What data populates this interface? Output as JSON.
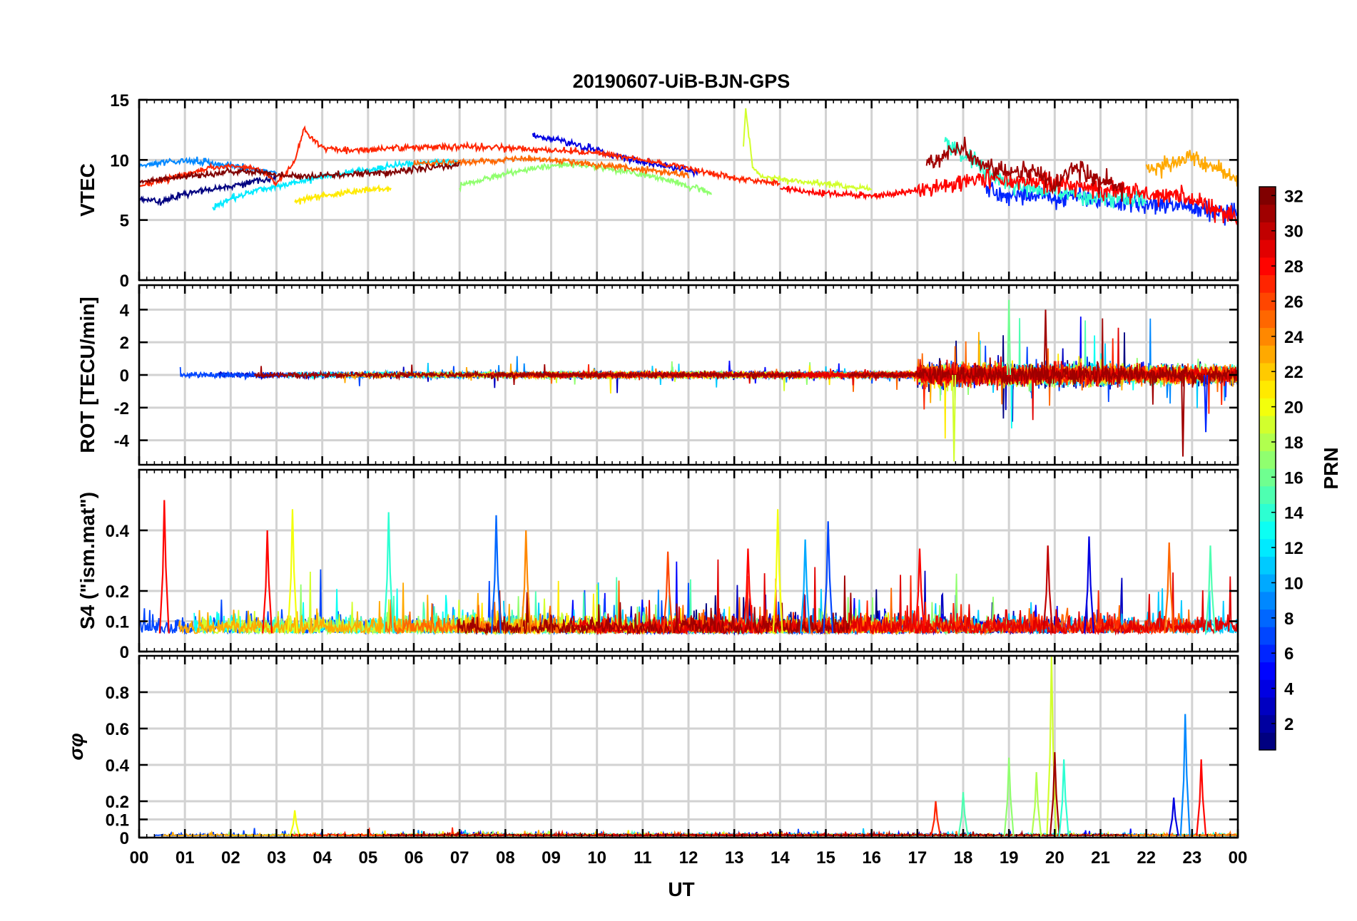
{
  "chart_data": {
    "type": "line",
    "title": "20190607-UiB-BJN-GPS",
    "xlabel": "UT",
    "x_tick_labels": [
      "00",
      "01",
      "02",
      "03",
      "04",
      "05",
      "06",
      "07",
      "08",
      "09",
      "10",
      "11",
      "12",
      "13",
      "14",
      "15",
      "16",
      "17",
      "18",
      "19",
      "20",
      "21",
      "22",
      "23",
      "00"
    ],
    "xlim": [
      0,
      24
    ],
    "grid": true,
    "colorbar": {
      "label": "PRN",
      "range": [
        1,
        32
      ],
      "tick_labels": [
        "2",
        "4",
        "6",
        "8",
        "10",
        "12",
        "14",
        "16",
        "18",
        "20",
        "22",
        "24",
        "26",
        "28",
        "30",
        "32"
      ],
      "colormap": "jet"
    },
    "panels": [
      {
        "id": "vtec",
        "ylabel": "VTEC",
        "ylim": [
          0,
          15
        ],
        "y_tick_labels": [
          "0",
          "5",
          "10",
          "15"
        ],
        "series": [
          {
            "prn": 1,
            "x": [
              0,
              0.5,
              1,
              1.5,
              2,
              2.5,
              3
            ],
            "y": [
              6.8,
              6.5,
              7.2,
              7.5,
              7.8,
              8.2,
              8.5
            ]
          },
          {
            "prn": 4,
            "x": [
              8.6,
              9.2,
              9.8,
              10.4,
              11,
              11.6,
              12.2
            ],
            "y": [
              12,
              11.6,
              11,
              10.4,
              9.8,
              9.4,
              9
            ]
          },
          {
            "prn": 6,
            "x": [
              18.5,
              19,
              19.5,
              20,
              20.5,
              21,
              21.5,
              22,
              22.5,
              23,
              23.5,
              24
            ],
            "y": [
              7.5,
              7,
              7.2,
              6.8,
              7,
              6.6,
              6.5,
              6.4,
              6.2,
              6,
              5.8,
              5.6
            ]
          },
          {
            "prn": 9,
            "x": [
              0,
              0.5,
              1,
              1.5,
              2,
              2.5,
              3
            ],
            "y": [
              9.5,
              9.8,
              10,
              9.8,
              9.5,
              9.2,
              9
            ]
          },
          {
            "prn": 12,
            "x": [
              1.6,
              2,
              2.5,
              3,
              3.5,
              4,
              4.5,
              5,
              5.5,
              6,
              6.5,
              7
            ],
            "y": [
              6,
              6.8,
              7.4,
              7.8,
              8.2,
              8.6,
              8.9,
              9.2,
              9.5,
              9.7,
              9.8,
              9.8
            ]
          },
          {
            "prn": 14,
            "x": [
              17.6,
              18,
              18.5,
              19,
              19.5,
              20,
              20.5,
              21,
              21.5,
              22
            ],
            "y": [
              11.6,
              10.5,
              9,
              8,
              7.6,
              7.3,
              7.1,
              6.9,
              6.8,
              6.7
            ]
          },
          {
            "prn": 17,
            "x": [
              7,
              7.5,
              8,
              8.5,
              9,
              9.5,
              10,
              10.5,
              11,
              11.5,
              12,
              12.5
            ],
            "y": [
              7.8,
              8.4,
              8.8,
              9.2,
              9.5,
              9.6,
              9.4,
              9.1,
              8.8,
              8.4,
              7.8,
              7.3
            ]
          },
          {
            "prn": 19,
            "x": [
              13.2,
              13.25,
              13.4,
              13.6,
              14,
              14.5,
              15,
              15.5,
              16
            ],
            "y": [
              11,
              14.2,
              9.5,
              8.6,
              8.4,
              8.2,
              8,
              7.8,
              7.6
            ]
          },
          {
            "prn": 21,
            "x": [
              3.4,
              4,
              4.5,
              5,
              5.5
            ],
            "y": [
              6.5,
              7,
              7.3,
              7.5,
              7.6
            ]
          },
          {
            "prn": 23,
            "x": [
              22,
              22.5,
              23,
              23.5,
              24
            ],
            "y": [
              9,
              9.8,
              10.2,
              9.4,
              8.4
            ]
          },
          {
            "prn": 25,
            "x": [
              6,
              6.5,
              7,
              7.5,
              8,
              8.5,
              9,
              9.5,
              10,
              10.5,
              11,
              11.5,
              12
            ],
            "y": [
              9.8,
              9.7,
              9.8,
              9.9,
              10,
              10.1,
              10,
              9.8,
              9.6,
              9.4,
              9.2,
              9,
              8.8
            ]
          },
          {
            "prn": 27,
            "x": [
              0,
              0.5,
              1,
              1.5,
              2,
              2.5,
              2.8,
              3,
              3.4,
              3.6,
              4,
              4.5,
              5,
              5.5,
              6,
              6.5,
              7,
              8,
              9,
              10,
              11,
              12,
              13,
              14
            ],
            "y": [
              7.8,
              8.3,
              8.8,
              9.3,
              9.5,
              9.3,
              8.8,
              8,
              10,
              12.5,
              11,
              10.8,
              10.8,
              11,
              11,
              11.1,
              11.1,
              11,
              10.8,
              10.6,
              10,
              9.3,
              8.5,
              8
            ]
          },
          {
            "prn": 28,
            "x": [
              14,
              14.5,
              15,
              15.5,
              16,
              16.5,
              17,
              17.5,
              18,
              18.5,
              19,
              19.5,
              20,
              21,
              22,
              23,
              23.5,
              24
            ],
            "y": [
              7.6,
              7.4,
              7.2,
              7.1,
              7,
              7.2,
              7.5,
              7.8,
              8.2,
              8.6,
              8.4,
              8.2,
              8,
              7.6,
              7.2,
              6.8,
              5.8,
              5.2
            ]
          },
          {
            "prn": 31,
            "x": [
              17.2,
              17.5,
              18,
              18.2,
              18.5,
              19,
              19.5,
              20,
              20.5,
              21,
              21.5
            ],
            "y": [
              9.8,
              10,
              11.3,
              10,
              9.5,
              8.8,
              9.2,
              8,
              9.4,
              8.2,
              7.6
            ]
          },
          {
            "prn": 32,
            "x": [
              0,
              0.5,
              1,
              1.5,
              2,
              2.5,
              3,
              3.5,
              4,
              4.5,
              5,
              5.5,
              6,
              6.5,
              7
            ],
            "y": [
              8.2,
              8.4,
              8.6,
              8.8,
              9,
              9,
              8.8,
              8.6,
              8.7,
              8.8,
              8.9,
              9,
              9.2,
              9.4,
              9.6
            ]
          }
        ]
      },
      {
        "id": "rot",
        "ylabel": "ROT [TECU/min]",
        "ylim": [
          -5.5,
          5.5
        ],
        "y_tick_labels": [
          "-4",
          "-2",
          "0",
          "2",
          "4"
        ],
        "notable_events": [
          {
            "x": 17.8,
            "y": -5.3,
            "prn": 19
          },
          {
            "x": 19,
            "y": 4.6,
            "prn": 16
          },
          {
            "x": 19.8,
            "y": 4,
            "prn": 31
          },
          {
            "x": 22.8,
            "y": -5,
            "prn": 31
          },
          {
            "x": 23.3,
            "y": -3.5,
            "prn": 6
          }
        ]
      },
      {
        "id": "s4",
        "ylabel": "S4 (\"ism.mat\")",
        "ylim": [
          0,
          0.6
        ],
        "y_tick_labels": [
          "0",
          "0.1",
          "0.2",
          "0.4"
        ],
        "baseline": 0.06,
        "notable_peaks": [
          {
            "x": 0.55,
            "y": 0.5,
            "prn": 28
          },
          {
            "x": 2.8,
            "y": 0.4,
            "prn": 28
          },
          {
            "x": 3.35,
            "y": 0.47,
            "prn": 20
          },
          {
            "x": 5.45,
            "y": 0.46,
            "prn": 14
          },
          {
            "x": 7.8,
            "y": 0.45,
            "prn": 8
          },
          {
            "x": 8.45,
            "y": 0.4,
            "prn": 24
          },
          {
            "x": 11.55,
            "y": 0.33,
            "prn": 26
          },
          {
            "x": 13.3,
            "y": 0.34,
            "prn": 28
          },
          {
            "x": 13.95,
            "y": 0.47,
            "prn": 20
          },
          {
            "x": 14.55,
            "y": 0.37,
            "prn": 10
          },
          {
            "x": 15.05,
            "y": 0.43,
            "prn": 7
          },
          {
            "x": 17.05,
            "y": 0.34,
            "prn": 28
          },
          {
            "x": 19.85,
            "y": 0.35,
            "prn": 30
          },
          {
            "x": 20.75,
            "y": 0.38,
            "prn": 4
          },
          {
            "x": 22.5,
            "y": 0.36,
            "prn": 25
          },
          {
            "x": 23.4,
            "y": 0.35,
            "prn": 15
          }
        ]
      },
      {
        "id": "sigma_phi",
        "ylabel": "σφ",
        "ylim": [
          0,
          1
        ],
        "y_tick_labels": [
          "0",
          "0.1",
          "0.2",
          "0.4",
          "0.6",
          "0.8"
        ],
        "baseline": 0.01,
        "notable_peaks": [
          {
            "x": 3.4,
            "y": 0.15,
            "prn": 20
          },
          {
            "x": 17.4,
            "y": 0.2,
            "prn": 27
          },
          {
            "x": 18,
            "y": 0.25,
            "prn": 15
          },
          {
            "x": 19,
            "y": 0.44,
            "prn": 17
          },
          {
            "x": 19.6,
            "y": 0.36,
            "prn": 18
          },
          {
            "x": 19.93,
            "y": 1.0,
            "prn": 19
          },
          {
            "x": 20,
            "y": 0.47,
            "prn": 31
          },
          {
            "x": 20.2,
            "y": 0.43,
            "prn": 14
          },
          {
            "x": 22.6,
            "y": 0.22,
            "prn": 4
          },
          {
            "x": 22.85,
            "y": 0.68,
            "prn": 9
          },
          {
            "x": 23.2,
            "y": 0.43,
            "prn": 28
          }
        ]
      }
    ]
  }
}
